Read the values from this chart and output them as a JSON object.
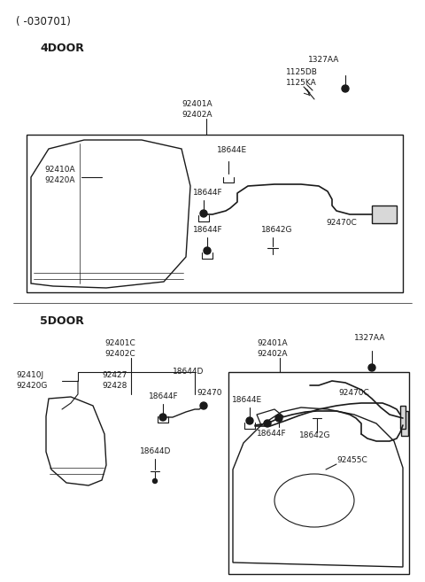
{
  "bg_color": "#ffffff",
  "line_color": "#1a1a1a",
  "text_color": "#1a1a1a",
  "title": "( -030701)",
  "s4door": "4DOOR",
  "s5door": "5DOOR"
}
